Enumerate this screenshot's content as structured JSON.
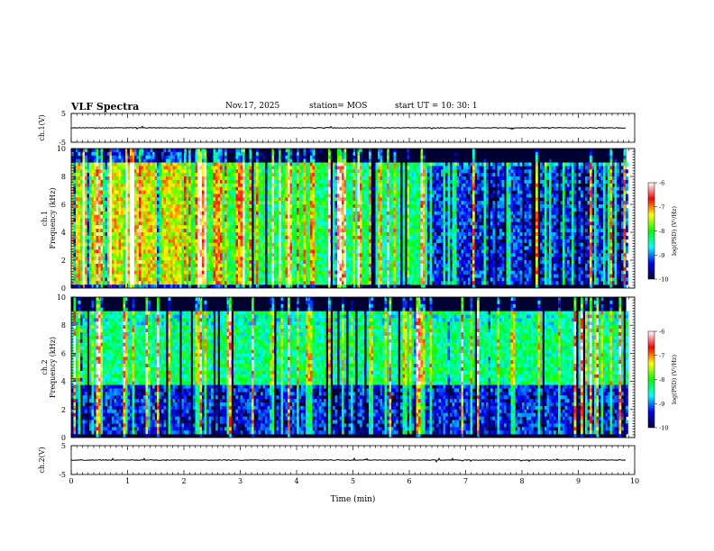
{
  "header": {
    "title": "VLF Spectra",
    "date": "Nov.17, 2025",
    "station": "station= MOS",
    "start": "start  UT  =   10: 30: 1"
  },
  "chart_data": {
    "type": "heatmap",
    "x_axis": {
      "label": "Time  (min)",
      "range": [
        0,
        10
      ],
      "ticks": [
        "0",
        "1",
        "2",
        "3",
        "4",
        "5",
        "6",
        "7",
        "8",
        "9",
        "10"
      ]
    },
    "panels": [
      {
        "kind": "waveform",
        "ylabel": "ch.1(V)",
        "ylim": [
          -5,
          5
        ],
        "ytick_labels": [
          "5",
          "-5"
        ]
      },
      {
        "kind": "spectrogram",
        "ylabel_1": "ch.1",
        "ylabel_2": "Frequency  (kHz)",
        "ylim": [
          0,
          10
        ],
        "ytick_labels": [
          "0",
          "2",
          "4",
          "6",
          "8",
          "10"
        ],
        "colorbar": {
          "label": "log(PSD) (V²/Hz)",
          "range": [
            -10,
            -6
          ],
          "tick_labels": [
            "-6",
            "-7",
            "-8",
            "-9",
            "-10"
          ]
        },
        "data_end_min": 9.85
      },
      {
        "kind": "spectrogram",
        "ylabel_1": "ch.2",
        "ylabel_2": "Frequency  (kHz)",
        "ylim": [
          0,
          10
        ],
        "ytick_labels": [
          "0",
          "2",
          "4",
          "6",
          "8",
          "10"
        ],
        "colorbar": {
          "label": "log(PSD) (V²/Hz)",
          "range": [
            -10,
            -6
          ],
          "tick_labels": [
            "-6",
            "-7",
            "-8",
            "-9",
            "-10"
          ]
        },
        "data_end_min": 9.85
      },
      {
        "kind": "waveform",
        "ylabel": "ch.2(V)",
        "ylim": [
          -5,
          5
        ],
        "ytick_labels": [
          "5",
          "-5"
        ]
      }
    ],
    "colormap": [
      "#000033",
      "#0000ff",
      "#00ffff",
      "#00ff00",
      "#ffff00",
      "#ff0000",
      "#ffffff"
    ]
  }
}
